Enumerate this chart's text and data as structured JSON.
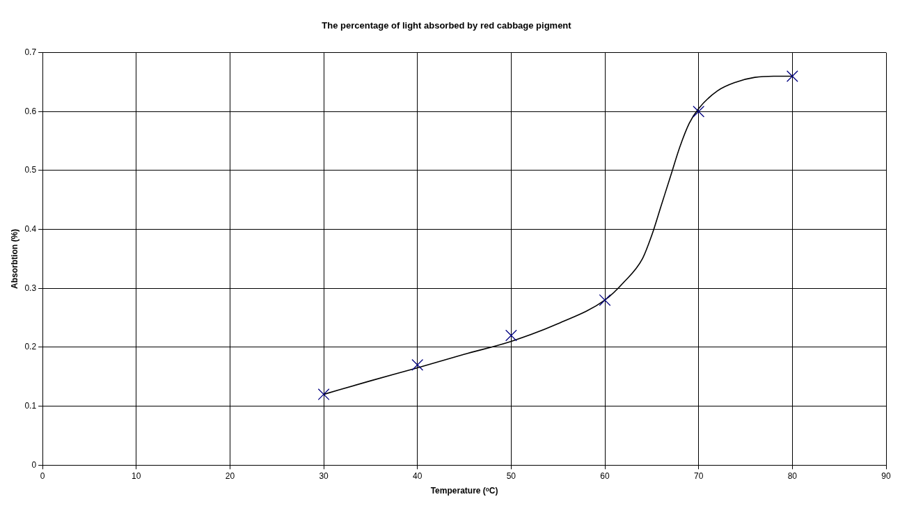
{
  "chart_data": {
    "type": "scatter",
    "title": "The percentage of light absorbed by red cabbage pigment",
    "xlabel": "Temperature (ᵒC)",
    "ylabel": "Absorbtion (%)",
    "series": [
      {
        "color": "#000080",
        "marker": "cross",
        "x": [
          30,
          40,
          50,
          60,
          70,
          80
        ],
        "values": [
          0.12,
          0.17,
          0.22,
          0.28,
          0.6,
          0.66
        ]
      },
      {
        "type": "line",
        "marker": "none",
        "color": "#000000",
        "x": [
          30,
          35,
          40,
          45,
          50,
          55,
          60,
          62,
          64,
          65,
          66,
          67,
          68,
          69,
          70,
          72,
          74,
          76,
          78,
          80
        ],
        "values": [
          0.12,
          0.143,
          0.165,
          0.188,
          0.21,
          0.24,
          0.28,
          0.31,
          0.35,
          0.39,
          0.44,
          0.49,
          0.54,
          0.58,
          0.605,
          0.635,
          0.65,
          0.658,
          0.66,
          0.66
        ]
      }
    ],
    "xlim": [
      0,
      90
    ],
    "xticks": [
      0,
      10,
      20,
      30,
      40,
      50,
      60,
      70,
      80,
      90
    ],
    "ylim": [
      0,
      0.7
    ],
    "yticks": [
      0,
      0.1,
      0.2,
      0.3,
      0.4,
      0.5,
      0.6,
      0.7
    ],
    "grid": true
  }
}
